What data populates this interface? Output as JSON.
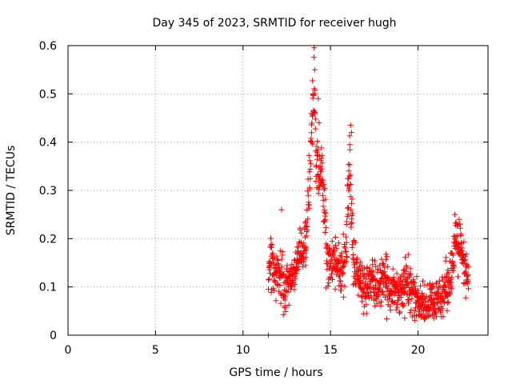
{
  "chart_data": {
    "type": "scatter",
    "title": "Day 345 of 2023, SRMTID for receiver hugh",
    "xlabel": "GPS time / hours",
    "ylabel": "SRMTID / TECUs",
    "xlim": [
      0,
      24
    ],
    "ylim": [
      0,
      0.6
    ],
    "xticks": [
      0,
      5,
      10,
      15,
      20
    ],
    "xtick_labels": [
      "0",
      "5",
      "10",
      "15",
      "20"
    ],
    "yticks": [
      0,
      0.1,
      0.2,
      0.3,
      0.4,
      0.5,
      0.6
    ],
    "ytick_labels": [
      "0",
      "0.1",
      "0.2",
      "0.3",
      "0.4",
      "0.5",
      "0.6"
    ],
    "grid": true,
    "marker": "plus",
    "color": "#ff0000",
    "series": [
      {
        "name": "SRMTID",
        "anchors_x": [
          11.5,
          11.6,
          11.7,
          11.8,
          12.0,
          12.2,
          12.5,
          12.8,
          13.0,
          13.2,
          13.4,
          13.6,
          13.7,
          13.8,
          13.9,
          14.0,
          14.05,
          14.1,
          14.2,
          14.3,
          14.4,
          14.5,
          14.6,
          14.7,
          14.8,
          14.9,
          15.0,
          15.2,
          15.4,
          15.6,
          15.8,
          15.9,
          16.0,
          16.1,
          16.2,
          16.3,
          16.4,
          16.6,
          16.8,
          17.0,
          17.3,
          17.6,
          18.0,
          18.4,
          18.8,
          19.2,
          19.4,
          19.6,
          19.8,
          20.0,
          20.3,
          20.6,
          20.8,
          21.0,
          21.2,
          21.4,
          21.6,
          21.8,
          22.0,
          22.2,
          22.4,
          22.6,
          22.8
        ],
        "anchors_y": [
          0.13,
          0.17,
          0.15,
          0.12,
          0.13,
          0.11,
          0.1,
          0.11,
          0.13,
          0.17,
          0.18,
          0.2,
          0.25,
          0.32,
          0.4,
          0.5,
          0.52,
          0.46,
          0.38,
          0.35,
          0.33,
          0.35,
          0.3,
          0.24,
          0.17,
          0.16,
          0.14,
          0.16,
          0.15,
          0.13,
          0.14,
          0.2,
          0.3,
          0.35,
          0.25,
          0.18,
          0.14,
          0.12,
          0.1,
          0.1,
          0.11,
          0.1,
          0.11,
          0.1,
          0.09,
          0.1,
          0.11,
          0.1,
          0.08,
          0.07,
          0.06,
          0.065,
          0.07,
          0.06,
          0.08,
          0.09,
          0.1,
          0.12,
          0.15,
          0.2,
          0.18,
          0.14,
          0.12
        ],
        "spread": 0.03,
        "density_per_hour": 95,
        "time_range": [
          11.45,
          22.9
        ],
        "outliers": [
          {
            "x": 11.45,
            "y": 0.0
          },
          {
            "x": 14.1,
            "y": 0.55
          },
          {
            "x": 14.0,
            "y": 0.5
          },
          {
            "x": 14.3,
            "y": 0.49
          },
          {
            "x": 14.35,
            "y": 0.44
          },
          {
            "x": 16.15,
            "y": 0.435
          },
          {
            "x": 16.2,
            "y": 0.42
          },
          {
            "x": 16.1,
            "y": 0.395
          },
          {
            "x": 12.2,
            "y": 0.26
          },
          {
            "x": 22.35,
            "y": 0.24
          },
          {
            "x": 22.4,
            "y": 0.23
          },
          {
            "x": 14.75,
            "y": 0.098
          },
          {
            "x": 20.9,
            "y": 0.035
          }
        ]
      }
    ]
  }
}
